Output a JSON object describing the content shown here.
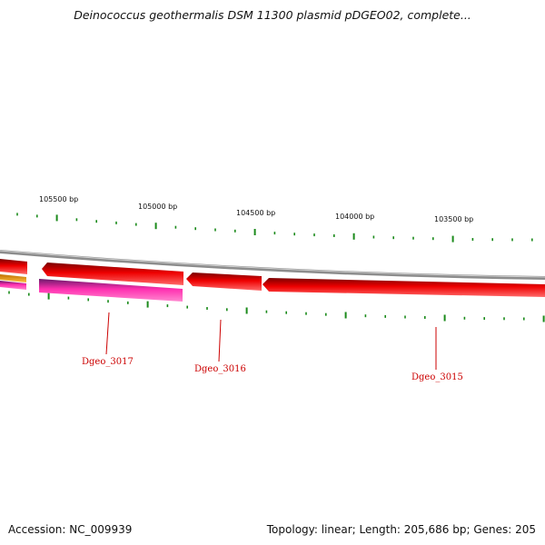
{
  "title": "Deinococcus geothermalis DSM 11300 plasmid pDGEO02, complete...",
  "ruler": {
    "labels": [
      "105500 bp",
      "105000 bp",
      "104500 bp",
      "104000 bp",
      "103500 bp"
    ],
    "tick_color": "#1a8a1a"
  },
  "track_colors": {
    "backbone": "#8c8c8c",
    "forward_gene": "#ee0000",
    "forward_gene_dark": "#8a0000",
    "reverse_gene": "#ff2fb0",
    "reverse_gene_dark": "#7a1a6a",
    "orange_feature": "#f2a000"
  },
  "genes": [
    {
      "name": "Dgeo_3017"
    },
    {
      "name": "Dgeo_3016"
    },
    {
      "name": "Dgeo_3015"
    }
  ],
  "footer": {
    "accession": "Accession: NC_009939",
    "summary": "Topology: linear; Length: 205,686 bp; Genes: 205"
  }
}
